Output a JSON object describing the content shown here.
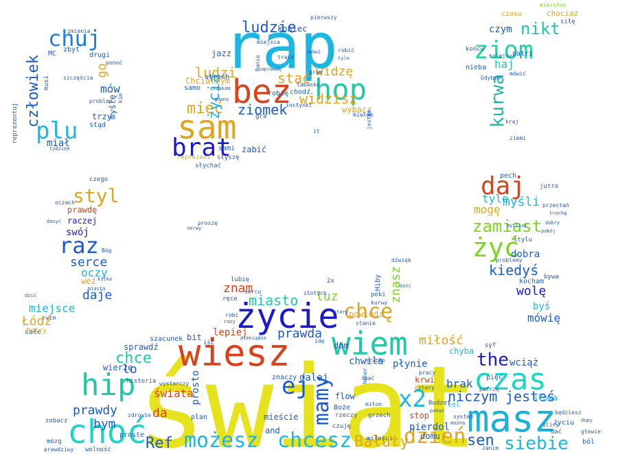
{
  "words": [
    {
      "text": "świat",
      "color": "#e6e21d"
    },
    {
      "text": "rap",
      "color": "#1cb6e0"
    },
    {
      "text": "masz",
      "color": "#1cb0d8"
    },
    {
      "text": "wiesz",
      "color": "#d9421b"
    },
    {
      "text": "życie",
      "color": "#1a1acc"
    },
    {
      "text": "wiem",
      "color": "#1ec9a4"
    },
    {
      "text": "bez",
      "color": "#d9431c"
    },
    {
      "text": "sam",
      "color": "#e0a41d"
    },
    {
      "text": "hop",
      "color": "#1ec9a4"
    },
    {
      "text": "hip",
      "color": "#1ec9a4"
    },
    {
      "text": "choć",
      "color": "#1ed6c8"
    },
    {
      "text": "czas",
      "color": "#1ed6c8"
    },
    {
      "text": "brat",
      "color": "#1a1acc"
    },
    {
      "text": "ziom",
      "color": "#1ed6a0"
    },
    {
      "text": "chuj",
      "color": "#1c7ee0"
    },
    {
      "text": "plu",
      "color": "#1cb6e0"
    },
    {
      "text": "daj",
      "color": "#d9431c"
    },
    {
      "text": "żyć",
      "color": "#7ad61e"
    },
    {
      "text": "raz",
      "color": "#1a5acc"
    },
    {
      "text": "styl",
      "color": "#e0a41d"
    },
    {
      "text": "chcesz",
      "color": "#1cb6e0"
    },
    {
      "text": "możesz",
      "color": "#1cb6e0"
    },
    {
      "text": "dzień",
      "color": "#e0a41d"
    },
    {
      "text": "siebie",
      "color": "#1cb6e0"
    },
    {
      "text": "x2",
      "color": "#1cb6e0"
    },
    {
      "text": "mamy",
      "color": "#1a5acc"
    },
    {
      "text": "chcę",
      "color": "#e0a41d"
    },
    {
      "text": "ludzie",
      "color": "#1a5acc"
    },
    {
      "text": "kurwa",
      "color": "#1cb6a0"
    },
    {
      "text": "nikt",
      "color": "#1ec9a4"
    },
    {
      "text": "człowiek",
      "color": "#1a5acc"
    },
    {
      "text": "the",
      "color": "#1a1acc"
    },
    {
      "text": "Ref",
      "color": "#1a5acc"
    },
    {
      "text": "sen",
      "color": "#1a5acc"
    },
    {
      "text": "mieć",
      "color": "#e0a41d"
    },
    {
      "text": "zamiast",
      "color": "#7ad61e"
    },
    {
      "text": "ludzi",
      "color": "#e0a41d"
    },
    {
      "text": "widzisz",
      "color": "#e0a41d"
    },
    {
      "text": "ziomek",
      "color": "#1a5acc"
    },
    {
      "text": "stać",
      "color": "#e0a41d"
    },
    {
      "text": "widzę",
      "color": "#e0a41d"
    },
    {
      "text": "życia",
      "color": "#1cb6e0"
    },
    {
      "text": "chce",
      "color": "#1ec9a4"
    },
    {
      "text": "Bałuty",
      "color": "#e0a41d"
    },
    {
      "text": "niczym",
      "color": "#1a5acc"
    },
    {
      "text": "jesteś",
      "color": "#1a5acc"
    },
    {
      "text": "ej",
      "color": "#1a5acc"
    },
    {
      "text": "serce",
      "color": "#1a5acc"
    },
    {
      "text": "kiedyś",
      "color": "#1a5acc"
    },
    {
      "text": "miasto",
      "color": "#1ec9a4"
    },
    {
      "text": "myśli",
      "color": "#1cb6e0"
    },
    {
      "text": "znam",
      "color": "#d9431c"
    },
    {
      "text": "luz",
      "color": "#7ad61e"
    },
    {
      "text": "prawda",
      "color": "#1a5acc"
    },
    {
      "text": "znasz",
      "color": "#7ad61e"
    },
    {
      "text": "tyle",
      "color": "#1cb6e0"
    },
    {
      "text": "mogę",
      "color": "#e0a41d"
    },
    {
      "text": "wolę",
      "color": "#1a1acc"
    },
    {
      "text": "prawdy",
      "color": "#1a5acc"
    },
    {
      "text": "bym",
      "color": "#1a5acc"
    },
    {
      "text": "miłość",
      "color": "#e0a41d"
    },
    {
      "text": "brak",
      "color": "#1a5acc"
    },
    {
      "text": "mów",
      "color": "#1a5acc"
    },
    {
      "text": "daje",
      "color": "#1a5acc"
    },
    {
      "text": "go",
      "color": "#e0a41d"
    },
    {
      "text": "Łódź",
      "color": "#e0a41d"
    },
    {
      "text": "mówię",
      "color": "#1a5acc"
    },
    {
      "text": "swój",
      "color": "#1a1acc"
    },
    {
      "text": "miał",
      "color": "#1a5acc"
    },
    {
      "text": "oczy",
      "color": "#1cb6e0"
    },
    {
      "text": "miejsce",
      "color": "#1cb6e0"
    },
    {
      "text": "pierdol",
      "color": "#1a5acc"
    },
    {
      "text": "koniec",
      "color": "#1a5acc"
    },
    {
      "text": "dalej",
      "color": "#1a5acc"
    },
    {
      "text": "lepiej",
      "color": "#d9431c"
    },
    {
      "text": "bit",
      "color": "#1a5acc"
    },
    {
      "text": "prosto",
      "color": "#1a5acc"
    },
    {
      "text": "świata",
      "color": "#d9431c"
    },
    {
      "text": "czym",
      "color": "#1a5acc"
    },
    {
      "text": "haj",
      "color": "#1ec9a4"
    },
    {
      "text": "raczej",
      "color": "#1a1acc"
    },
    {
      "text": "prawdę",
      "color": "#d9431c"
    },
    {
      "text": "dom",
      "color": "#1a5acc"
    },
    {
      "text": "jazz",
      "color": "#1a5acc"
    },
    {
      "text": "chwila",
      "color": "#1a5acc"
    },
    {
      "text": "płynie",
      "color": "#1a5acc"
    },
    {
      "text": "wciąż",
      "color": "#1a5acc"
    },
    {
      "text": "flow",
      "color": "#1a5acc"
    },
    {
      "text": "krwi",
      "color": "#d9431c"
    },
    {
      "text": "mieście",
      "color": "#1a5acc"
    },
    {
      "text": "chyba",
      "color": "#1cb6e0"
    },
    {
      "text": "dobra",
      "color": "#1a5acc"
    },
    {
      "text": "byś",
      "color": "#1cb6e0"
    },
    {
      "text": "zabić",
      "color": "#1a5acc"
    },
    {
      "text": "bywa",
      "color": "#1a5acc"
    },
    {
      "text": "kocham",
      "color": "#1a5acc"
    },
    {
      "text": "jutro",
      "color": "#1a5acc"
    },
    {
      "text": "trzy",
      "color": "#1a5acc"
    },
    {
      "text": "myślę",
      "color": "#1a5acc"
    },
    {
      "text": "sami",
      "color": "#1a5acc"
    },
    {
      "text": "strach",
      "color": "#1a5acc"
    },
    {
      "text": "Chciałbym",
      "color": "#e0a41d"
    },
    {
      "text": "samo",
      "color": "#1a5acc"
    },
    {
      "text": "robię",
      "color": "#1a5acc"
    },
    {
      "text": "chodź",
      "color": "#1a5acc"
    },
    {
      "text": "słyszę",
      "color": "#1a5acc"
    },
    {
      "text": "powiedz",
      "color": "#e0a41d"
    },
    {
      "text": "zbyt",
      "color": "#1a5acc"
    },
    {
      "text": "drugi",
      "color": "#1a5acc"
    },
    {
      "text": "stąd",
      "color": "#1a5acc"
    },
    {
      "text": "reprezentuj",
      "color": "#1a5acc"
    },
    {
      "text": "szczęścia",
      "color": "#1a5acc"
    },
    {
      "text": "zmienia",
      "color": "#1a5acc"
    },
    {
      "text": "pięć",
      "color": "#1a5acc"
    },
    {
      "text": "stop",
      "color": "#d9431c"
    },
    {
      "text": "domu",
      "color": "#1a5acc"
    },
    {
      "text": "słowa",
      "color": "#1cb6e0"
    },
    {
      "text": "Boże",
      "color": "#1a5acc"
    },
    {
      "text": "rzeczy",
      "color": "#1a5acc"
    },
    {
      "text": "miłości",
      "color": "#1a5acc"
    },
    {
      "text": "sprawdź",
      "color": "#1a5acc"
    },
    {
      "text": "wierzę",
      "color": "#1a5acc"
    },
    {
      "text": "szacunek",
      "color": "#1a5acc"
    },
    {
      "text": "lo",
      "color": "#1a5acc"
    },
    {
      "text": "da",
      "color": "#d9431c"
    },
    {
      "text": "and",
      "color": "#1a5acc"
    },
    {
      "text": "plan",
      "color": "#1a5acc"
    },
    {
      "text": "weź",
      "color": "#e0a41d"
    },
    {
      "text": "całe",
      "color": "#1a5acc"
    },
    {
      "text": "pech",
      "color": "#1a5acc"
    },
    {
      "text": "stylu",
      "color": "#1a5acc"
    },
    {
      "text": "wybacz",
      "color": "#e0a41d"
    },
    {
      "text": "czasu",
      "color": "#e0a41d"
    },
    {
      "text": "chociaż",
      "color": "#e0a41d"
    },
    {
      "text": "patrz",
      "color": "#1a5acc"
    },
    {
      "text": "końcu",
      "color": "#1a5acc"
    },
    {
      "text": "nieba",
      "color": "#1a5acc"
    },
    {
      "text": "kolejny",
      "color": "#1a5acc"
    },
    {
      "text": "mówić",
      "color": "#1a5acc"
    },
    {
      "text": "siłę",
      "color": "#1a5acc"
    },
    {
      "text": "przestań",
      "color": "#1a5acc"
    },
    {
      "text": "czego",
      "color": "#1a5acc"
    },
    {
      "text": "historia",
      "color": "#1a5acc"
    },
    {
      "text": "mózg",
      "color": "#1a5acc"
    },
    {
      "text": "zobacz",
      "color": "#1a5acc"
    },
    {
      "text": "wolność",
      "color": "#1a5acc"
    },
    {
      "text": "prawdziwy",
      "color": "#1a5acc"
    },
    {
      "text": "ból",
      "color": "#1a5acc"
    },
    {
      "text": "życiu",
      "color": "#1a5acc"
    },
    {
      "text": "głowie",
      "color": "#1a5acc"
    },
    {
      "text": "zanim",
      "color": "#1a5acc"
    },
    {
      "text": "będziesz",
      "color": "#1a5acc"
    },
    {
      "text": "problemy",
      "color": "#1a5acc"
    },
    {
      "text": "miejsca",
      "color": "#1a5acc"
    },
    {
      "text": "mikrofon",
      "color": "#7ad61e"
    },
    {
      "text": "pierwszy",
      "color": "#1a5acc"
    },
    {
      "text": "tabasko",
      "color": "#1a5acc"
    },
    {
      "text": "instynkt",
      "color": "#1a5acc"
    },
    {
      "text": "jestem",
      "color": "#1a5acc"
    },
    {
      "text": "miałem",
      "color": "#1a5acc"
    },
    {
      "text": "dźwięk",
      "color": "#1a5acc"
    },
    {
      "text": "Ostry",
      "color": "#e0a41d"
    },
    {
      "text": "rytm",
      "color": "#1a5acc"
    },
    {
      "text": "oczach",
      "color": "#1a5acc"
    },
    {
      "text": "dosyć",
      "color": "#1a5acc"
    },
    {
      "text": "proste",
      "color": "#1a5acc"
    },
    {
      "text": "honor",
      "color": "#1a5acc"
    },
    {
      "text": "złotych",
      "color": "#1a5acc"
    },
    {
      "text": "lubię",
      "color": "#1a5acc"
    },
    {
      "text": "ręce",
      "color": "#1a5acc"
    },
    {
      "text": "sercu",
      "color": "#1a5acc"
    },
    {
      "text": "kurwy",
      "color": "#1a5acc"
    },
    {
      "text": "póki",
      "color": "#1a5acc"
    },
    {
      "text": "stanie",
      "color": "#1a5acc"
    },
    {
      "text": "szybko",
      "color": "#1a5acc"
    },
    {
      "text": "pracy",
      "color": "#1a5acc"
    },
    {
      "text": "spać",
      "color": "#1a5acc"
    },
    {
      "text": "znaczy",
      "color": "#1a5acc"
    },
    {
      "text": "idę",
      "color": "#1a5acc"
    },
    {
      "text": "czuję",
      "color": "#1a5acc"
    },
    {
      "text": "grzech",
      "color": "#1a5acc"
    },
    {
      "text": "miłon",
      "color": "#1a5acc"
    },
    {
      "text": "ulicy",
      "color": "#1a5acc"
    },
    {
      "text": "dać",
      "color": "#1a5acc"
    },
    {
      "text": "ziemi",
      "color": "#1a5acc"
    },
    {
      "text": "kraj",
      "color": "#1a5acc"
    },
    {
      "text": "Gdybym",
      "color": "#1a5acc"
    },
    {
      "text": "dupy",
      "color": "#1a5acc"
    },
    {
      "text": "cel",
      "color": "#1cb6e0"
    },
    {
      "text": "syf",
      "color": "#1a5acc"
    },
    {
      "text": "patrzę",
      "color": "#1a5acc"
    },
    {
      "text": "cztery",
      "color": "#1a5acc"
    },
    {
      "text": "system",
      "color": "#1a5acc"
    },
    {
      "text": "można",
      "color": "#1a5acc"
    },
    {
      "text": "Budzet",
      "color": "#1a5acc"
    },
    {
      "text": "pokaż",
      "color": "#1a5acc"
    },
    {
      "text": "zdrowie",
      "color": "#1a5acc"
    },
    {
      "text": "wystarczy",
      "color": "#1a5acc"
    },
    {
      "text": "problem",
      "color": "#1a5acc"
    },
    {
      "text": "kim",
      "color": "#1a5acc"
    },
    {
      "text": "MC",
      "color": "#1a5acc"
    },
    {
      "text": "musi",
      "color": "#1a5acc"
    },
    {
      "text": "ponoć",
      "color": "#1a5acc"
    },
    {
      "text": "track",
      "color": "#1a5acc"
    },
    {
      "text": "mówi",
      "color": "#1a5acc"
    },
    {
      "text": "robić",
      "color": "#1a5acc"
    },
    {
      "text": "tyle",
      "color": "#1a5acc"
    },
    {
      "text": "gram",
      "color": "#1a5acc"
    },
    {
      "text": "Panie",
      "color": "#1a5acc"
    },
    {
      "text": "naprawdę",
      "color": "#1a5acc"
    },
    {
      "text": "szukam",
      "color": "#1a5acc"
    },
    {
      "text": "gówno",
      "color": "#1a5acc"
    },
    {
      "text": "gra",
      "color": "#1a5acc"
    },
    {
      "text": "it",
      "color": "#1a5acc"
    },
    {
      "text": "reprezent",
      "color": "#e0a41d"
    },
    {
      "text": "słychać",
      "color": "#1a5acc"
    },
    {
      "text": "proszę",
      "color": "#1a5acc"
    },
    {
      "text": "nerwy",
      "color": "#1a5acc"
    },
    {
      "text": "Bóg",
      "color": "#1a5acc"
    },
    {
      "text": "robi",
      "color": "#1a5acc"
    },
    {
      "text": "razy",
      "color": "#1a5acc"
    },
    {
      "text": "iść",
      "color": "#1a5acc"
    },
    {
      "text": "pieniądze",
      "color": "#1a5acc"
    },
    {
      "text": "2x",
      "color": "#1a5acc"
    },
    {
      "text": "Gość",
      "color": "#1a5acc"
    },
    {
      "text": "stary",
      "color": "#1a5acc"
    },
    {
      "text": "Hiby",
      "color": "#1a5acc"
    },
    {
      "text": "kilka",
      "color": "#1a5acc"
    },
    {
      "text": "dobry",
      "color": "#1a5acc"
    },
    {
      "text": "trochę",
      "color": "#1a5acc"
    },
    {
      "text": "pokój",
      "color": "#1a5acc"
    },
    {
      "text": "tydzień",
      "color": "#1a5acc"
    },
    {
      "text": "myślisz",
      "color": "#1a5acc"
    },
    {
      "text": "dziś",
      "color": "#1a5acc"
    },
    {
      "text": "miasta",
      "color": "#1a5acc"
    }
  ]
}
